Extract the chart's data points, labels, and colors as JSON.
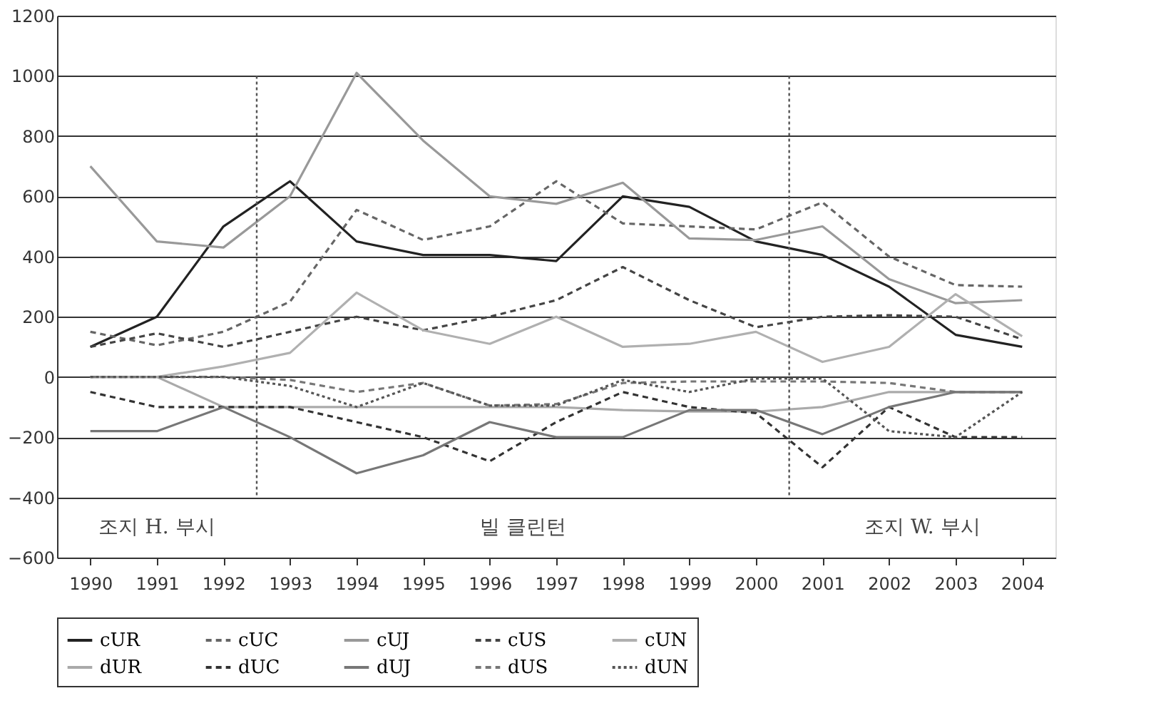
{
  "chart_data": {
    "type": "line",
    "x": [
      1990,
      1991,
      1992,
      1993,
      1994,
      1995,
      1996,
      1997,
      1998,
      1999,
      2000,
      2001,
      2002,
      2003,
      2004
    ],
    "xlim": [
      1989.5,
      2004.5
    ],
    "xticks": [
      1990,
      1991,
      1992,
      1993,
      1994,
      1995,
      1996,
      1997,
      1998,
      1999,
      2000,
      2001,
      2002,
      2003,
      2004
    ],
    "ylim": [
      -600,
      1200
    ],
    "yticks": [
      -600,
      -400,
      -200,
      0,
      200,
      400,
      600,
      800,
      1000,
      1200
    ],
    "grid": "y",
    "legend": "bottom",
    "series": [
      {
        "name": "cUR",
        "color": "#222222",
        "line_style": "solid",
        "values": [
          100,
          200,
          500,
          650,
          450,
          405,
          405,
          385,
          600,
          565,
          450,
          405,
          300,
          140,
          100
        ]
      },
      {
        "name": "cUC",
        "color": "#666666",
        "line_style": "dashed",
        "values": [
          150,
          105,
          150,
          250,
          555,
          455,
          500,
          650,
          510,
          500,
          490,
          580,
          400,
          305,
          300
        ]
      },
      {
        "name": "cUJ",
        "color": "#999999",
        "line_style": "solid",
        "values": [
          700,
          450,
          430,
          600,
          1010,
          785,
          600,
          575,
          645,
          460,
          455,
          500,
          325,
          245,
          255
        ]
      },
      {
        "name": "cUS",
        "color": "#444444",
        "line_style": "dashed",
        "values": [
          100,
          145,
          100,
          150,
          200,
          155,
          200,
          255,
          365,
          255,
          165,
          200,
          205,
          200,
          125
        ]
      },
      {
        "name": "cUN",
        "color": "#b0b0b0",
        "line_style": "solid",
        "values": [
          0,
          0,
          35,
          80,
          280,
          155,
          110,
          200,
          100,
          110,
          150,
          50,
          100,
          275,
          135
        ]
      },
      {
        "name": "dUR",
        "color": "#aaaaaa",
        "line_style": "solid",
        "values": [
          0,
          0,
          -100,
          -100,
          -100,
          -100,
          -100,
          -100,
          -110,
          -115,
          -115,
          -100,
          -50,
          -50,
          -50
        ]
      },
      {
        "name": "dUC",
        "color": "#333333",
        "line_style": "dashed",
        "values": [
          -50,
          -100,
          -100,
          -100,
          -150,
          -200,
          -280,
          -150,
          -50,
          -100,
          -120,
          -300,
          -100,
          -200,
          -200
        ]
      },
      {
        "name": "dUJ",
        "color": "#777777",
        "line_style": "solid",
        "values": [
          -180,
          -180,
          -100,
          -200,
          -320,
          -260,
          -150,
          -200,
          -200,
          -110,
          -110,
          -190,
          -100,
          -50,
          -50
        ]
      },
      {
        "name": "dUS",
        "color": "#777777",
        "line_style": "dashed",
        "values": [
          0,
          0,
          0,
          -10,
          -50,
          -20,
          -95,
          -90,
          -20,
          -15,
          -15,
          -15,
          -20,
          -50,
          -50
        ]
      },
      {
        "name": "dUN",
        "color": "#555555",
        "line_style": "dotted",
        "values": [
          0,
          0,
          0,
          -30,
          -100,
          -20,
          -95,
          -95,
          -10,
          -50,
          -5,
          -5,
          -180,
          -200,
          -50
        ]
      }
    ],
    "ref_lines": [
      {
        "axis": "x",
        "value": 1992.5,
        "line_style": "dotted",
        "color": "#555555"
      },
      {
        "axis": "x",
        "value": 2000.5,
        "line_style": "dotted",
        "color": "#555555"
      }
    ],
    "annotations": [
      "조지 H. 부시",
      "빌 클린턴",
      "조지 W. 부시"
    ]
  }
}
